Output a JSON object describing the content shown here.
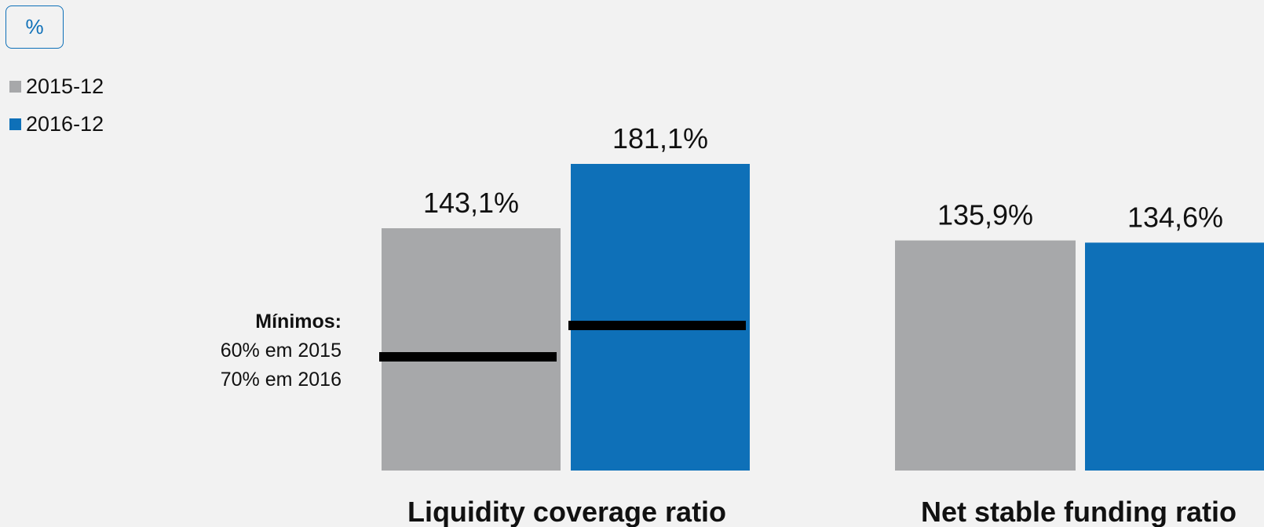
{
  "unit_label": "%",
  "legend": [
    {
      "label": "2015-12",
      "color": "#a7a8aa"
    },
    {
      "label": "2016-12",
      "color": "#0e70b8"
    }
  ],
  "minimums_note": {
    "title": "Mínimos:",
    "line1": "60% em 2015",
    "line2": "70% em 2016"
  },
  "chart_data": {
    "type": "bar",
    "categories": [
      "Liquidity coverage ratio",
      "Net stable funding ratio"
    ],
    "series": [
      {
        "name": "2015-12",
        "values": [
          143.1,
          135.9
        ],
        "labels": [
          "143,1%",
          "135,9%"
        ],
        "color": "#a7a8aa"
      },
      {
        "name": "2016-12",
        "values": [
          181.1,
          134.6
        ],
        "labels": [
          "181,1%",
          "134,6%"
        ],
        "color": "#0e70b8"
      }
    ],
    "minimum_markers": [
      {
        "category": "Liquidity coverage ratio",
        "series": "2015-12",
        "value": 60
      },
      {
        "category": "Liquidity coverage ratio",
        "series": "2016-12",
        "value": 70
      }
    ],
    "ylim": [
      0,
      181.1
    ],
    "grid": false,
    "legend_position": "top-left"
  }
}
